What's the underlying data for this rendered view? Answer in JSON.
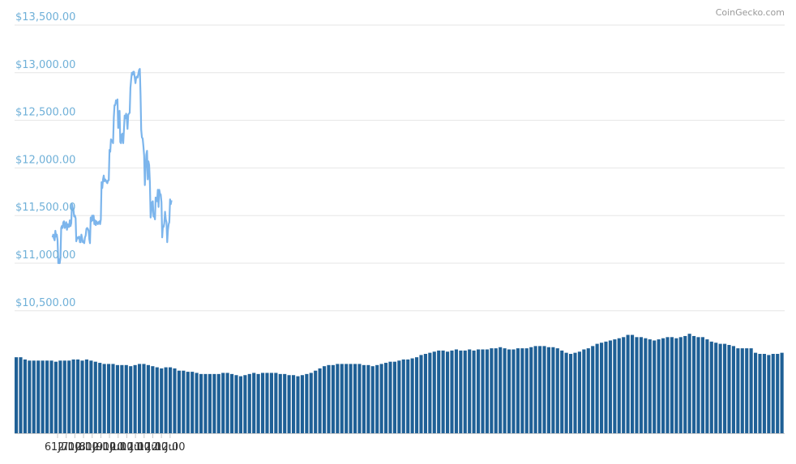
{
  "credit": "CoinGecko.com",
  "colors": {
    "line": "#7cb5ec",
    "volume": "#1f6096",
    "grid": "#e6e6e6",
    "y_label": "#6fb0d8"
  },
  "chart_data": [
    {
      "type": "line",
      "title": "",
      "xlabel": "",
      "ylabel": "",
      "grid": true,
      "x_ticks": [
        "6. Jul",
        "12:00",
        "7. Jul",
        "12:00",
        "8. Jul",
        "12:00",
        "9. Jul",
        "12:00",
        "10. Jul",
        "12:00",
        "11. Jul",
        "12:00",
        "12. Jul",
        "12:00"
      ],
      "y_ticks": [
        "$10,500.00",
        "$11,000.00",
        "$11,500.00",
        "$12,000.00",
        "$12,500.00",
        "$13,000.00",
        "$13,500.00"
      ],
      "ylim": [
        10500,
        13500
      ],
      "x_unit": "hours since 6 Jul 00:00 (approximate)",
      "series": [
        {
          "values": [
            [
              -7.0,
              11270
            ],
            [
              -6.0,
              11300
            ],
            [
              -5.0,
              11260
            ],
            [
              -4.0,
              11240
            ],
            [
              -3.0,
              11340
            ],
            [
              -2.0,
              11280
            ],
            [
              -1.0,
              11300
            ],
            [
              0.0,
              11240
            ],
            [
              1.0,
              11000
            ],
            [
              2.0,
              11040
            ],
            [
              3.0,
              11000
            ],
            [
              4.0,
              11060
            ],
            [
              5.0,
              11370
            ],
            [
              6.0,
              11390
            ],
            [
              7.0,
              11370
            ],
            [
              8.0,
              11430
            ],
            [
              9.0,
              11440
            ],
            [
              10.0,
              11370
            ],
            [
              11.0,
              11400
            ],
            [
              12.0,
              11430
            ],
            [
              13.0,
              11350
            ],
            [
              14.0,
              11410
            ],
            [
              15.0,
              11380
            ],
            [
              16.0,
              11380
            ],
            [
              17.0,
              11450
            ],
            [
              18.0,
              11390
            ],
            [
              19.0,
              11420
            ],
            [
              20.0,
              11620
            ],
            [
              21.0,
              11580
            ],
            [
              22.0,
              11560
            ],
            [
              23.0,
              11490
            ],
            [
              24.0,
              11500
            ],
            [
              25.0,
              11470
            ],
            [
              26.0,
              11230
            ],
            [
              27.0,
              11260
            ],
            [
              28.0,
              11270
            ],
            [
              29.0,
              11260
            ],
            [
              30.0,
              11280
            ],
            [
              31.0,
              11220
            ],
            [
              32.0,
              11220
            ],
            [
              33.0,
              11300
            ],
            [
              34.0,
              11260
            ],
            [
              35.0,
              11220
            ],
            [
              36.0,
              11230
            ],
            [
              37.0,
              11210
            ],
            [
              38.0,
              11270
            ],
            [
              39.0,
              11290
            ],
            [
              40.0,
              11360
            ],
            [
              41.0,
              11370
            ],
            [
              42.0,
              11360
            ],
            [
              43.0,
              11340
            ],
            [
              44.0,
              11250
            ],
            [
              45.0,
              11210
            ],
            [
              46.0,
              11480
            ],
            [
              47.0,
              11440
            ],
            [
              48.0,
              11500
            ],
            [
              49.0,
              11450
            ],
            [
              50.0,
              11500
            ],
            [
              51.0,
              11410
            ],
            [
              52.0,
              11450
            ],
            [
              53.0,
              11400
            ],
            [
              54.0,
              11440
            ],
            [
              55.0,
              11420
            ],
            [
              56.0,
              11410
            ],
            [
              57.0,
              11430
            ],
            [
              58.0,
              11440
            ],
            [
              59.0,
              11410
            ],
            [
              60.0,
              11460
            ],
            [
              61.0,
              11850
            ],
            [
              62.0,
              11790
            ],
            [
              63.0,
              11880
            ],
            [
              64.0,
              11920
            ],
            [
              65.0,
              11860
            ],
            [
              66.0,
              11880
            ],
            [
              67.0,
              11870
            ],
            [
              68.0,
              11850
            ],
            [
              69.0,
              11840
            ],
            [
              70.0,
              11870
            ],
            [
              71.0,
              11870
            ],
            [
              72.0,
              12190
            ],
            [
              73.0,
              12170
            ],
            [
              74.0,
              12300
            ],
            [
              75.0,
              12290
            ],
            [
              76.0,
              12280
            ],
            [
              77.0,
              12260
            ],
            [
              78.0,
              12530
            ],
            [
              79.0,
              12660
            ],
            [
              80.0,
              12660
            ],
            [
              81.0,
              12710
            ],
            [
              82.0,
              12680
            ],
            [
              83.0,
              12720
            ],
            [
              84.0,
              12420
            ],
            [
              85.0,
              12530
            ],
            [
              86.0,
              12600
            ],
            [
              87.0,
              12270
            ],
            [
              88.0,
              12260
            ],
            [
              89.0,
              12350
            ],
            [
              90.0,
              12360
            ],
            [
              91.0,
              12260
            ],
            [
              92.0,
              12400
            ],
            [
              93.0,
              12550
            ],
            [
              94.0,
              12520
            ],
            [
              95.0,
              12570
            ],
            [
              96.0,
              12520
            ],
            [
              97.0,
              12410
            ],
            [
              98.0,
              12560
            ],
            [
              99.0,
              12570
            ],
            [
              100.0,
              12580
            ],
            [
              101.0,
              12840
            ],
            [
              102.0,
              12930
            ],
            [
              103.0,
              13000
            ],
            [
              104.0,
              12980
            ],
            [
              105.0,
              13010
            ],
            [
              106.0,
              13010
            ],
            [
              107.0,
              12950
            ],
            [
              108.0,
              12890
            ],
            [
              109.0,
              12950
            ],
            [
              110.0,
              12960
            ],
            [
              111.0,
              12950
            ],
            [
              112.0,
              12990
            ],
            [
              113.0,
              13030
            ],
            [
              114.0,
              13040
            ],
            [
              115.0,
              12760
            ],
            [
              116.0,
              12400
            ],
            [
              117.0,
              12320
            ],
            [
              118.0,
              12310
            ],
            [
              119.0,
              12230
            ],
            [
              120.0,
              12130
            ],
            [
              121.0,
              11820
            ],
            [
              122.0,
              11990
            ],
            [
              123.0,
              12140
            ],
            [
              124.0,
              12180
            ],
            [
              125.0,
              11880
            ],
            [
              126.0,
              12070
            ],
            [
              127.0,
              12030
            ],
            [
              128.0,
              11850
            ],
            [
              129.0,
              11480
            ],
            [
              130.0,
              11540
            ],
            [
              131.0,
              11640
            ],
            [
              132.0,
              11650
            ],
            [
              133.0,
              11490
            ],
            [
              134.0,
              11500
            ],
            [
              135.0,
              11460
            ],
            [
              136.0,
              11690
            ],
            [
              137.0,
              11660
            ],
            [
              138.0,
              11650
            ],
            [
              139.0,
              11770
            ],
            [
              140.0,
              11590
            ],
            [
              141.0,
              11770
            ],
            [
              142.0,
              11730
            ],
            [
              143.0,
              11720
            ],
            [
              144.0,
              11640
            ],
            [
              145.0,
              11270
            ],
            [
              146.0,
              11380
            ],
            [
              147.0,
              11380
            ],
            [
              148.0,
              11420
            ],
            [
              149.0,
              11540
            ],
            [
              150.0,
              11460
            ],
            [
              151.0,
              11430
            ],
            [
              152.0,
              11220
            ],
            [
              153.0,
              11350
            ],
            [
              154.0,
              11410
            ],
            [
              155.0,
              11430
            ],
            [
              156.0,
              11670
            ],
            [
              157.0,
              11620
            ],
            [
              158.0,
              11660
            ]
          ]
        }
      ]
    },
    {
      "type": "bar",
      "title": "",
      "values_relative": [
        0.68,
        0.68,
        0.66,
        0.65,
        0.65,
        0.65,
        0.65,
        0.65,
        0.65,
        0.64,
        0.65,
        0.65,
        0.65,
        0.66,
        0.66,
        0.65,
        0.66,
        0.65,
        0.64,
        0.63,
        0.62,
        0.62,
        0.62,
        0.61,
        0.61,
        0.61,
        0.6,
        0.61,
        0.62,
        0.62,
        0.61,
        0.6,
        0.59,
        0.58,
        0.59,
        0.59,
        0.58,
        0.56,
        0.56,
        0.55,
        0.55,
        0.54,
        0.53,
        0.53,
        0.53,
        0.53,
        0.53,
        0.54,
        0.54,
        0.53,
        0.52,
        0.51,
        0.52,
        0.53,
        0.54,
        0.53,
        0.54,
        0.54,
        0.54,
        0.54,
        0.53,
        0.53,
        0.52,
        0.52,
        0.51,
        0.52,
        0.53,
        0.54,
        0.56,
        0.58,
        0.6,
        0.61,
        0.61,
        0.62,
        0.62,
        0.62,
        0.62,
        0.62,
        0.62,
        0.61,
        0.61,
        0.6,
        0.61,
        0.62,
        0.63,
        0.64,
        0.64,
        0.65,
        0.66,
        0.66,
        0.67,
        0.68,
        0.7,
        0.71,
        0.72,
        0.73,
        0.74,
        0.74,
        0.73,
        0.74,
        0.75,
        0.74,
        0.74,
        0.75,
        0.74,
        0.75,
        0.75,
        0.75,
        0.76,
        0.76,
        0.77,
        0.76,
        0.75,
        0.75,
        0.76,
        0.76,
        0.76,
        0.77,
        0.78,
        0.78,
        0.78,
        0.77,
        0.77,
        0.76,
        0.74,
        0.72,
        0.71,
        0.72,
        0.73,
        0.75,
        0.76,
        0.78,
        0.8,
        0.81,
        0.82,
        0.83,
        0.84,
        0.85,
        0.86,
        0.88,
        0.88,
        0.86,
        0.86,
        0.85,
        0.84,
        0.83,
        0.84,
        0.85,
        0.86,
        0.86,
        0.85,
        0.86,
        0.87,
        0.89,
        0.87,
        0.86,
        0.86,
        0.84,
        0.82,
        0.81,
        0.8,
        0.8,
        0.79,
        0.78,
        0.76,
        0.76,
        0.76,
        0.76,
        0.72,
        0.71,
        0.71,
        0.7,
        0.71,
        0.71,
        0.72
      ]
    }
  ]
}
